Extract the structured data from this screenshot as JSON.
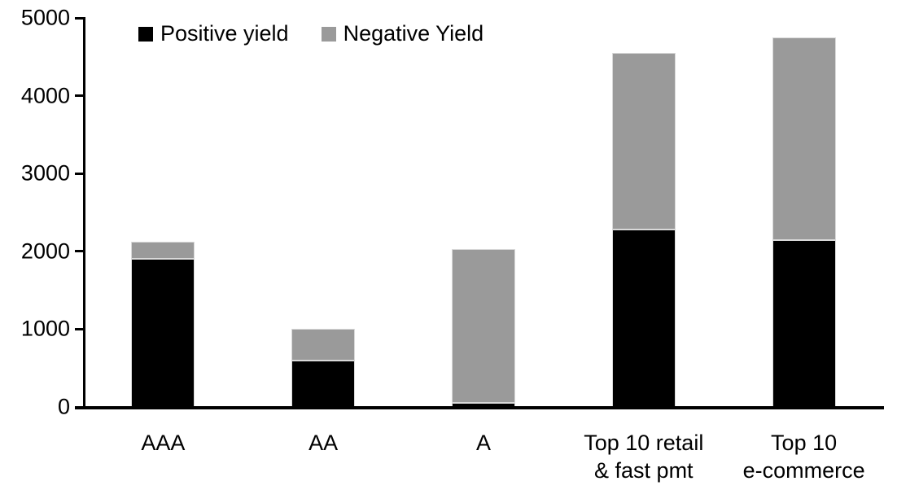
{
  "chart_data": {
    "type": "bar",
    "stacked": true,
    "title": "",
    "xlabel": "",
    "ylabel": "",
    "categories": [
      "AAA",
      "AA",
      "A",
      "Top 10 retail\n& fast pmt",
      "Top 10\ne-commerce"
    ],
    "series": [
      {
        "name": "Positive yield",
        "color": "#000000",
        "values": [
          1900,
          600,
          50,
          2280,
          2140
        ]
      },
      {
        "name": "Negative Yield",
        "color": "#9a9a9a",
        "values": [
          220,
          400,
          1980,
          2270,
          2610
        ]
      }
    ],
    "totals": [
      2120,
      1000,
      2030,
      4550,
      4750
    ],
    "ylim": [
      0,
      5000
    ],
    "yticks": [
      0,
      1000,
      2000,
      3000,
      4000,
      5000
    ],
    "legend_position": "top",
    "grid": false,
    "axis_color": "#000000",
    "background_color": "#ffffff",
    "bar_border_color": "#d9d9d9"
  }
}
